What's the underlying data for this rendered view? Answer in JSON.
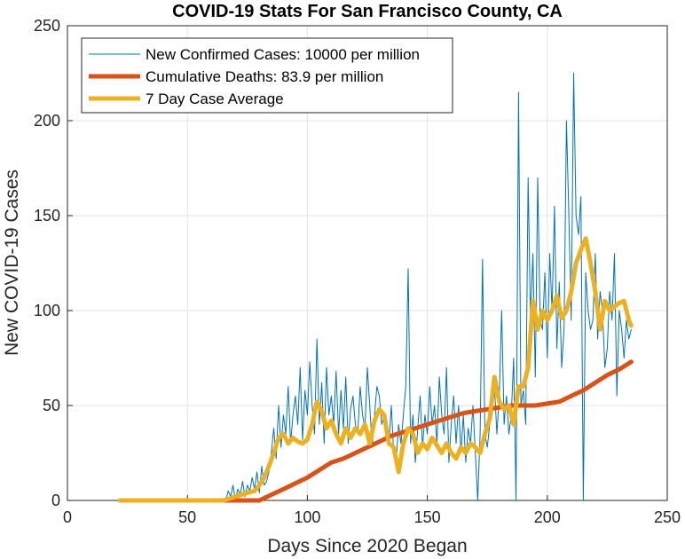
{
  "chart_data": {
    "type": "line",
    "title": "COVID-19 Stats For San Francisco County, CA",
    "xlabel": "Days Since 2020 Began",
    "ylabel": "New COVID-19 Cases",
    "xlim": [
      0,
      250
    ],
    "ylim": [
      0,
      250
    ],
    "xticks": [
      "0",
      "50",
      "100",
      "150",
      "200",
      "250"
    ],
    "yticks": [
      "0",
      "50",
      "100",
      "150",
      "200",
      "250"
    ],
    "grid": true,
    "legend_position": "top-left",
    "series": [
      {
        "name": "New Confirmed Cases: 10000 per million",
        "color": "#0072BD",
        "x": [
          22,
          30,
          40,
          50,
          60,
          65,
          66,
          67,
          68,
          69,
          70,
          71,
          72,
          73,
          74,
          75,
          76,
          77,
          78,
          79,
          80,
          81,
          82,
          83,
          84,
          85,
          86,
          87,
          88,
          89,
          90,
          91,
          92,
          93,
          94,
          95,
          96,
          97,
          98,
          99,
          100,
          101,
          102,
          103,
          104,
          105,
          106,
          107,
          108,
          109,
          110,
          111,
          112,
          113,
          114,
          115,
          116,
          117,
          118,
          119,
          120,
          121,
          122,
          123,
          124,
          125,
          126,
          127,
          128,
          129,
          130,
          131,
          132,
          133,
          134,
          135,
          136,
          137,
          138,
          139,
          140,
          141,
          142,
          143,
          144,
          145,
          146,
          147,
          148,
          149,
          150,
          151,
          152,
          153,
          154,
          155,
          156,
          157,
          158,
          159,
          160,
          161,
          162,
          163,
          164,
          165,
          166,
          167,
          168,
          169,
          170,
          171,
          172,
          173,
          174,
          175,
          176,
          177,
          178,
          179,
          180,
          181,
          182,
          183,
          184,
          185,
          186,
          187,
          188,
          189,
          190,
          191,
          192,
          193,
          194,
          195,
          196,
          197,
          198,
          199,
          200,
          201,
          202,
          203,
          204,
          205,
          206,
          207,
          208,
          209,
          210,
          211,
          212,
          213,
          214,
          215,
          216,
          217,
          218,
          219,
          220,
          221,
          222,
          223,
          224,
          225,
          226,
          227,
          228,
          229,
          230,
          231,
          232,
          233,
          234,
          235
        ],
        "y": [
          0,
          0,
          0,
          0,
          0,
          0,
          0,
          5,
          2,
          8,
          0,
          6,
          3,
          10,
          2,
          8,
          5,
          12,
          6,
          15,
          4,
          18,
          8,
          10,
          15,
          25,
          38,
          22,
          50,
          28,
          45,
          35,
          60,
          30,
          45,
          55,
          40,
          70,
          32,
          58,
          45,
          73,
          50,
          35,
          85,
          40,
          62,
          30,
          70,
          45,
          55,
          40,
          68,
          35,
          58,
          38,
          65,
          30,
          48,
          55,
          40,
          35,
          60,
          45,
          38,
          70,
          50,
          28,
          45,
          60,
          55,
          40,
          45,
          35,
          30,
          50,
          25,
          20,
          40,
          30,
          45,
          60,
          122,
          30,
          45,
          20,
          38,
          55,
          28,
          45,
          35,
          60,
          40,
          50,
          30,
          65,
          45,
          35,
          70,
          20,
          40,
          55,
          30,
          50,
          25,
          45,
          20,
          38,
          30,
          50,
          25,
          0,
          35,
          127,
          35,
          28,
          40,
          45,
          60,
          35,
          55,
          100,
          40,
          55,
          35,
          45,
          75,
          0,
          215,
          50,
          58,
          40,
          170,
          95,
          130,
          65,
          170,
          95,
          90,
          120,
          75,
          130,
          100,
          155,
          80,
          115,
          70,
          90,
          200,
          150,
          95,
          225,
          150,
          140,
          160,
          0,
          120,
          100,
          90,
          95,
          130,
          85,
          110,
          100,
          70,
          80,
          110,
          95,
          130,
          55,
          100,
          90,
          75,
          95,
          85,
          90
        ]
      },
      {
        "name": "Cumulative Deaths: 83.9 per million",
        "color": "#D95319",
        "x": [
          22,
          40,
          60,
          80,
          85,
          90,
          95,
          100,
          105,
          110,
          115,
          120,
          125,
          130,
          135,
          140,
          145,
          150,
          155,
          160,
          165,
          170,
          175,
          180,
          185,
          190,
          195,
          200,
          205,
          210,
          215,
          220,
          225,
          230,
          235
        ],
        "y": [
          0,
          0,
          0,
          0,
          3,
          6,
          9,
          12,
          16,
          20,
          22,
          25,
          28,
          31,
          34,
          36,
          38,
          40,
          42,
          44,
          46,
          47,
          48,
          49,
          50,
          50,
          50,
          51,
          52,
          55,
          58,
          62,
          66,
          69,
          73
        ]
      },
      {
        "name": "7 Day Case Average",
        "color": "#EDB120",
        "x": [
          22,
          30,
          40,
          50,
          60,
          65,
          70,
          75,
          78,
          80,
          82,
          84,
          86,
          88,
          90,
          92,
          94,
          96,
          98,
          100,
          102,
          104,
          106,
          108,
          110,
          112,
          114,
          116,
          118,
          120,
          122,
          124,
          126,
          128,
          130,
          132,
          134,
          136,
          138,
          140,
          142,
          144,
          146,
          148,
          150,
          152,
          154,
          156,
          158,
          160,
          162,
          164,
          166,
          168,
          170,
          172,
          174,
          176,
          178,
          180,
          182,
          184,
          186,
          188,
          190,
          192,
          194,
          196,
          198,
          200,
          202,
          204,
          206,
          208,
          210,
          212,
          214,
          216,
          218,
          220,
          222,
          224,
          226,
          228,
          230,
          232,
          234,
          235
        ],
        "y": [
          0,
          0,
          0,
          0,
          0,
          0,
          2,
          4,
          5,
          8,
          12,
          18,
          25,
          33,
          35,
          30,
          33,
          31,
          30,
          32,
          40,
          52,
          47,
          38,
          42,
          35,
          30,
          38,
          33,
          38,
          35,
          40,
          30,
          42,
          48,
          45,
          30,
          28,
          15,
          30,
          38,
          35,
          25,
          30,
          27,
          33,
          29,
          25,
          30,
          25,
          22,
          28,
          25,
          30,
          28,
          25,
          35,
          43,
          65,
          52,
          48,
          50,
          40,
          60,
          60,
          70,
          105,
          90,
          100,
          95,
          100,
          108,
          96,
          100,
          110,
          125,
          132,
          138,
          125,
          110,
          90,
          105,
          100,
          102,
          104,
          105,
          95,
          92
        ]
      }
    ]
  }
}
